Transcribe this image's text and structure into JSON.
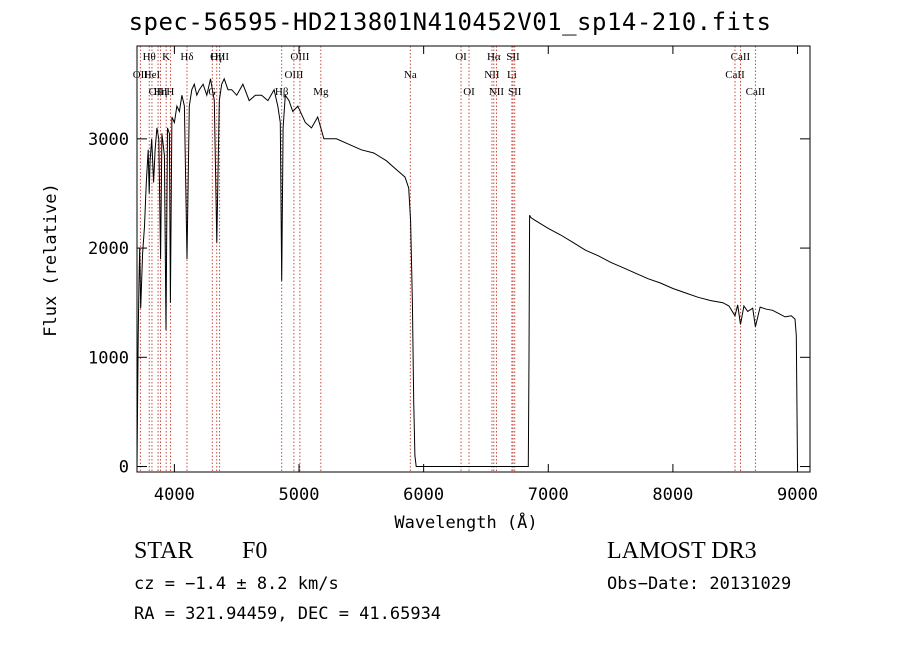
{
  "chart_data": {
    "type": "line",
    "title": "spec-56595-HD213801N410452V01_sp14-210.fits",
    "xlabel": "Wavelength (Å)",
    "ylabel": "Flux (relative)",
    "xlim": [
      3700,
      9100
    ],
    "ylim": [
      -50,
      3850
    ],
    "xticks": [
      4000,
      5000,
      6000,
      7000,
      8000,
      9000
    ],
    "yticks": [
      0,
      1000,
      2000,
      3000
    ],
    "grid": false,
    "series": [
      {
        "name": "flux",
        "x": [
          3700,
          3705,
          3710,
          3716,
          3722,
          3730,
          3745,
          3760,
          3775,
          3790,
          3798,
          3805,
          3818,
          3833,
          3845,
          3860,
          3875,
          3889,
          3900,
          3920,
          3933,
          3945,
          3960,
          3968,
          3980,
          4000,
          4020,
          4040,
          4060,
          4080,
          4101,
          4120,
          4140,
          4160,
          4180,
          4200,
          4230,
          4260,
          4290,
          4320,
          4340,
          4360,
          4380,
          4400,
          4430,
          4460,
          4500,
          4550,
          4600,
          4650,
          4700,
          4750,
          4800,
          4830,
          4850,
          4861,
          4872,
          4890,
          4920,
          4950,
          4990,
          5050,
          5100,
          5150,
          5200,
          5300,
          5400,
          5500,
          5600,
          5700,
          5800,
          5850,
          5880,
          5895,
          5910,
          5920,
          5930,
          5940,
          5950,
          6000,
          6100,
          6200,
          6300,
          6400,
          6500,
          6600,
          6700,
          6800,
          6840,
          6845,
          6850,
          6860,
          6900,
          7000,
          7100,
          7200,
          7300,
          7400,
          7500,
          7600,
          7700,
          7800,
          7900,
          8000,
          8100,
          8200,
          8300,
          8400,
          8450,
          8498,
          8520,
          8542,
          8570,
          8600,
          8640,
          8662,
          8700,
          8750,
          8800,
          8850,
          8900,
          8950,
          8980,
          8990,
          9000
        ],
        "values": [
          0,
          600,
          1200,
          1700,
          2000,
          1450,
          1950,
          2200,
          2600,
          2900,
          2500,
          2800,
          3000,
          2600,
          2900,
          3100,
          3000,
          1900,
          3050,
          2850,
          1250,
          3100,
          3050,
          1500,
          3200,
          3150,
          3300,
          3250,
          3400,
          3300,
          1900,
          3300,
          3450,
          3500,
          3400,
          3450,
          3500,
          3400,
          3550,
          3350,
          2050,
          3350,
          3500,
          3550,
          3450,
          3450,
          3400,
          3500,
          3350,
          3400,
          3400,
          3350,
          3450,
          3300,
          3150,
          1700,
          3100,
          3400,
          3350,
          3250,
          3300,
          3150,
          3100,
          3200,
          3000,
          3000,
          2950,
          2900,
          2870,
          2800,
          2700,
          2650,
          2550,
          2250,
          1500,
          600,
          100,
          0,
          0,
          0,
          0,
          0,
          0,
          0,
          0,
          0,
          0,
          0,
          0,
          1000,
          2300,
          2280,
          2250,
          2180,
          2120,
          2050,
          1980,
          1930,
          1870,
          1820,
          1770,
          1720,
          1680,
          1630,
          1590,
          1550,
          1520,
          1500,
          1470,
          1380,
          1480,
          1300,
          1470,
          1420,
          1450,
          1280,
          1460,
          1440,
          1430,
          1400,
          1370,
          1380,
          1350,
          1200,
          0
        ]
      }
    ],
    "lines": [
      {
        "label": "Hθ",
        "x": 3798,
        "row": 1
      },
      {
        "label": "K",
        "x": 3934,
        "row": 1
      },
      {
        "label": "Hδ",
        "x": 4101,
        "row": 1
      },
      {
        "label": "OII",
        "x": 3727,
        "row": 2
      },
      {
        "label": "HeI",
        "x": 3820,
        "row": 2
      },
      {
        "label": "OIII",
        "x": 3869,
        "row": 3
      },
      {
        "label": "Hη",
        "x": 3889,
        "row": 3
      },
      {
        "label": "H",
        "x": 3968,
        "row": 3
      },
      {
        "label": "G",
        "x": 4304,
        "row": 3
      },
      {
        "label": "Hγ",
        "x": 4340,
        "row": 1
      },
      {
        "label": "OIII",
        "x": 4363,
        "row": 1
      },
      {
        "label": "Hβ",
        "x": 4861,
        "row": 3
      },
      {
        "label": "OIII",
        "x": 4959,
        "row": 2
      },
      {
        "label": "OIII",
        "x": 5007,
        "row": 1
      },
      {
        "label": "Mg",
        "x": 5175,
        "row": 3
      },
      {
        "label": "Na",
        "x": 5893,
        "row": 2
      },
      {
        "label": "OI",
        "x": 6300,
        "row": 1
      },
      {
        "label": "OI",
        "x": 6364,
        "row": 3
      },
      {
        "label": "Hα",
        "x": 6563,
        "row": 1
      },
      {
        "label": "NII",
        "x": 6548,
        "row": 2
      },
      {
        "label": "NII",
        "x": 6584,
        "row": 3
      },
      {
        "label": "SII",
        "x": 6717,
        "row": 1
      },
      {
        "label": "Li",
        "x": 6708,
        "row": 2
      },
      {
        "label": "SII",
        "x": 6731,
        "row": 3
      },
      {
        "label": "CaII",
        "x": 8498,
        "row": 2
      },
      {
        "label": "CaII",
        "x": 8542,
        "row": 1
      },
      {
        "label": "CaII",
        "x": 8662,
        "row": 3
      }
    ]
  },
  "info": {
    "class_label": "STAR",
    "subclass": "F0",
    "survey": "LAMOST DR3",
    "redshift": "cz = −1.4 ± 8.2 km/s",
    "obs_date": "Obs−Date: 20131029",
    "coords": "RA = 321.94459, DEC =  41.65934"
  }
}
